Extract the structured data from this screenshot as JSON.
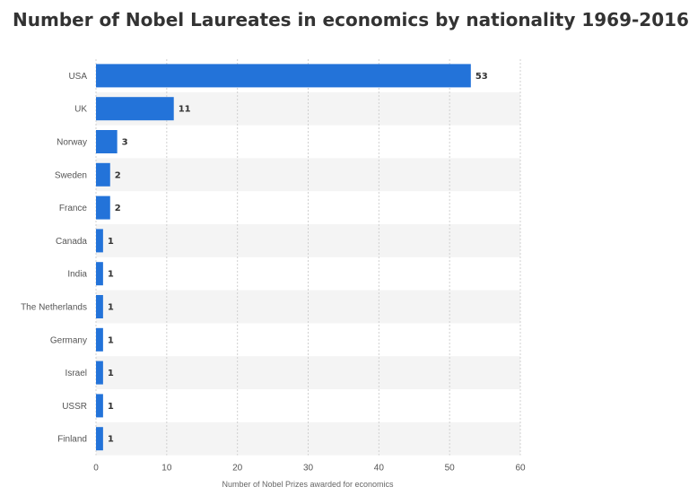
{
  "chart_data": {
    "type": "bar",
    "orientation": "horizontal",
    "title": "Number of Nobel Laureates in economics by nationality 1969-2016",
    "xlabel": "Number of Nobel Prizes awarded for economics",
    "ylabel": "",
    "categories": [
      "USA",
      "UK",
      "Norway",
      "Sweden",
      "France",
      "Canada",
      "India",
      "The Netherlands",
      "Germany",
      "Israel",
      "USSR",
      "Finland"
    ],
    "values": [
      53,
      11,
      3,
      2,
      2,
      1,
      1,
      1,
      1,
      1,
      1,
      1
    ],
    "value_labels": [
      "53",
      "11",
      "3",
      "2",
      "2",
      "1",
      "1",
      "1",
      "1",
      "1",
      "1",
      "1"
    ],
    "xlim": [
      0,
      60
    ],
    "xticks": [
      0,
      10,
      20,
      30,
      40,
      50,
      60
    ],
    "xtick_labels": [
      "0",
      "10",
      "20",
      "30",
      "40",
      "50",
      "60"
    ],
    "grid": true,
    "legend": "none",
    "colors": {
      "bar": "#2373d9",
      "band": "#f4f4f4",
      "grid": "#d0d0d0"
    }
  }
}
